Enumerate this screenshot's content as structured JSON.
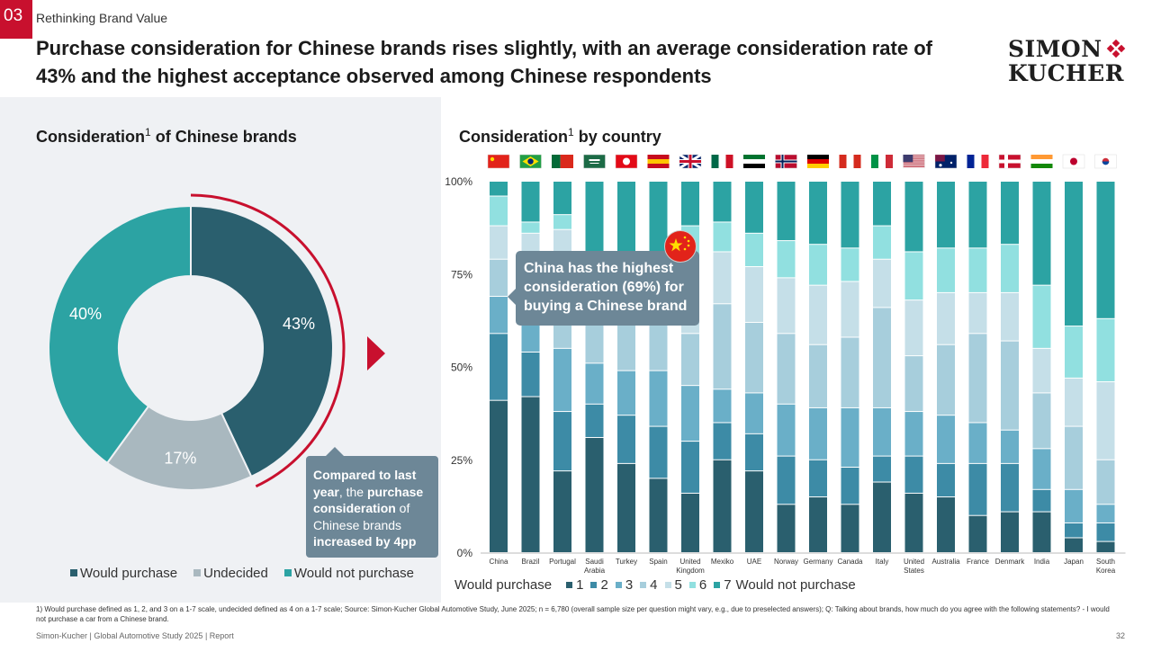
{
  "header": {
    "section_number": "03",
    "section_title": "Rethinking Brand Value",
    "headline": "Purchase consideration for Chinese brands rises slightly, with an average consideration rate of 43% and the highest acceptance observed among Chinese respondents",
    "logo_line1": "SIMON",
    "logo_line2": "KUCHER"
  },
  "colors": {
    "brand_red": "#c8102e",
    "would_purchase": "#2a5f6e",
    "undecided": "#a9b8bf",
    "would_not_purchase": "#2ca3a3",
    "scale": [
      "#2a5f6e",
      "#3d8ba6",
      "#6aafc8",
      "#a7cedc",
      "#c5dfe8",
      "#91e0e0",
      "#2ca3a3"
    ],
    "callout_bg": "#6d8797"
  },
  "left": {
    "title": "Consideration",
    "title_sup": "1",
    "title_rest": " of Chinese brands",
    "note": {
      "p1_bold": "Compared to last year",
      "p2": ", the ",
      "p3_bold": "purchase consideration",
      "p4": " of Chinese brands ",
      "p5_bold": "increased by 4pp"
    },
    "legend": [
      "Would purchase",
      "Undecided",
      "Would not purchase"
    ]
  },
  "right": {
    "title": "Consideration",
    "title_sup": "1",
    "title_rest": " by country",
    "tip": "China has the highest consideration (69%) for buying a Chinese brand",
    "legend_left": "Would purchase",
    "legend_right": "Would not purchase",
    "legend_levels": [
      "1",
      "2",
      "3",
      "4",
      "5",
      "6",
      "7"
    ]
  },
  "chart_data": [
    {
      "type": "pie",
      "title": "Consideration of Chinese brands",
      "donut": true,
      "categories": [
        "Would purchase",
        "Undecided",
        "Would not purchase"
      ],
      "values": [
        43,
        17,
        40
      ],
      "labels": [
        "43%",
        "17%",
        "40%"
      ],
      "legend": "bottom"
    },
    {
      "type": "bar",
      "stacked": true,
      "title": "Consideration by country",
      "categories": [
        "China",
        "Brazil",
        "Portugal",
        "Saudi Arabia",
        "Turkey",
        "Spain",
        "United Kingdom",
        "Mexiko",
        "UAE",
        "Norway",
        "Germany",
        "Canada",
        "Italy",
        "United States",
        "Australia",
        "France",
        "Denmark",
        "India",
        "Japan",
        "South Korea"
      ],
      "flags": [
        "cn",
        "br",
        "pt",
        "sa",
        "tr",
        "es",
        "gb",
        "mx",
        "ae",
        "no",
        "de",
        "ca",
        "it",
        "us",
        "au",
        "fr",
        "dk",
        "in",
        "jp",
        "kr"
      ],
      "series": [
        {
          "name": "1",
          "values": [
            41,
            42,
            22,
            31,
            24,
            20,
            16,
            25,
            22,
            13,
            15,
            13,
            19,
            16,
            15,
            10,
            11,
            11,
            4,
            3
          ]
        },
        {
          "name": "2",
          "values": [
            18,
            12,
            16,
            9,
            13,
            14,
            14,
            10,
            10,
            13,
            10,
            10,
            7,
            10,
            9,
            14,
            13,
            6,
            4,
            5
          ]
        },
        {
          "name": "3",
          "values": [
            10,
            11,
            17,
            11,
            12,
            15,
            15,
            9,
            11,
            14,
            14,
            16,
            13,
            12,
            13,
            11,
            9,
            11,
            9,
            5
          ]
        },
        {
          "name": "4",
          "values": [
            10,
            10,
            17,
            12,
            14,
            13,
            14,
            23,
            19,
            19,
            17,
            19,
            27,
            15,
            19,
            24,
            24,
            15,
            17,
            12
          ]
        },
        {
          "name": "5",
          "values": [
            9,
            11,
            15,
            14,
            14,
            13,
            16,
            14,
            15,
            15,
            16,
            15,
            13,
            15,
            14,
            11,
            13,
            12,
            13,
            21
          ]
        },
        {
          "name": "6",
          "values": [
            8,
            3,
            4,
            3,
            4,
            6,
            13,
            8,
            9,
            10,
            11,
            9,
            9,
            13,
            12,
            12,
            13,
            17,
            14,
            17
          ]
        },
        {
          "name": "7",
          "values": [
            4,
            11,
            9,
            20,
            19,
            19,
            12,
            11,
            14,
            16,
            17,
            18,
            12,
            19,
            18,
            18,
            17,
            28,
            39,
            37
          ]
        }
      ],
      "y_ticks": [
        "0%",
        "25%",
        "50%",
        "75%",
        "100%"
      ],
      "ylim": [
        0,
        100
      ],
      "legend": "bottom"
    }
  ],
  "footnote": "1) Would purchase defined as 1, 2, and 3 on a 1-7 scale, undecided defined as 4 on a 1-7 scale; Source: Simon-Kucher Global Automotive Study, June 2025; n = 6,780 (overall sample size per question might vary, e.g., due to preselected answers); Q: Talking about brands, how much do you agree with the following statements? - I would not purchase a car from a Chinese brand.",
  "footer": "Simon-Kucher | Global Automotive Study 2025 | Report",
  "page_number": "32"
}
